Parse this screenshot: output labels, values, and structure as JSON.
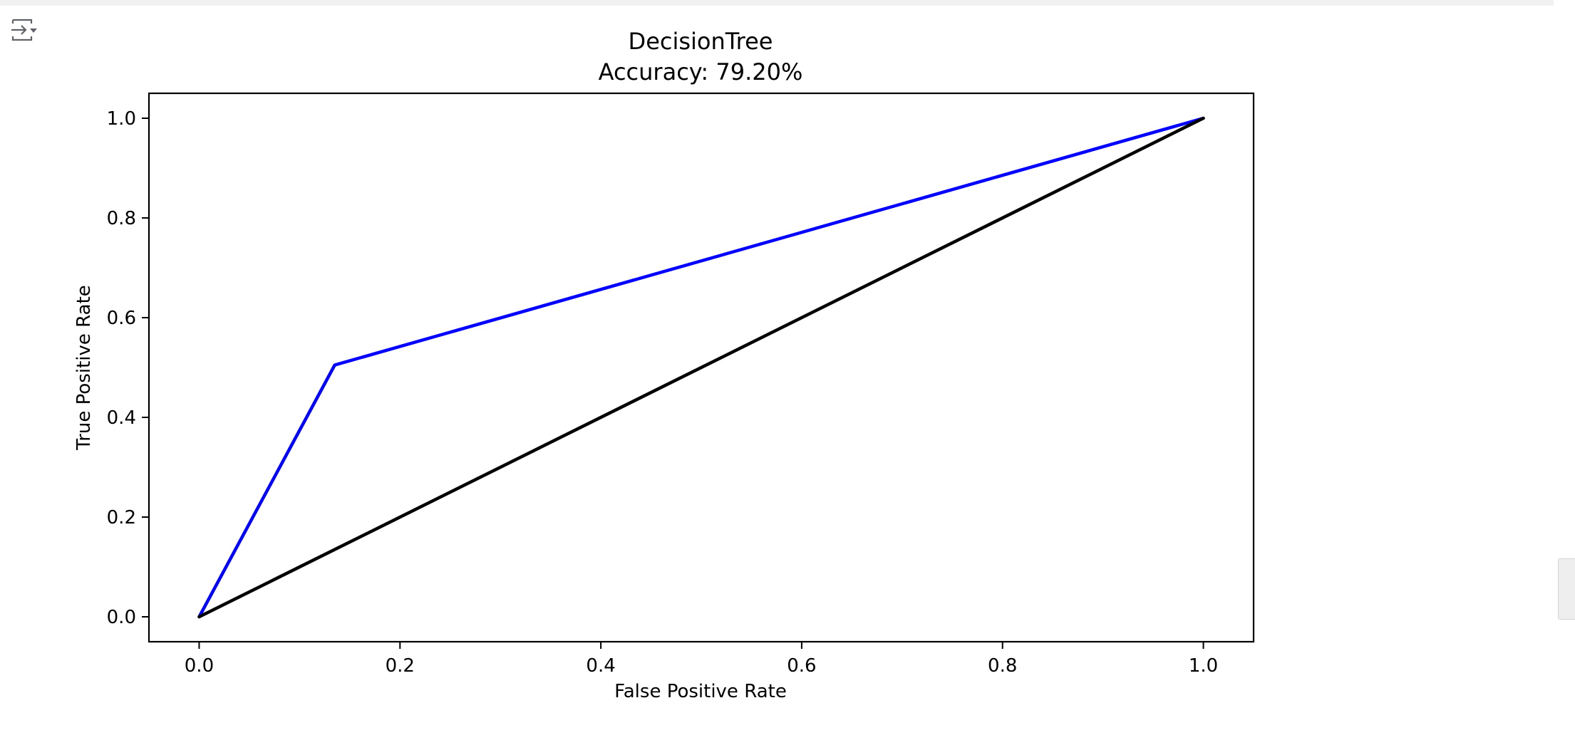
{
  "output_toggle": {
    "icon": "output-toggle-icon"
  },
  "chart_data": {
    "type": "line",
    "title": "DecisionTree",
    "subtitle": "Accuracy: 79.20%",
    "xlabel": "False Positive Rate",
    "ylabel": "True Positive Rate",
    "xlim": [
      -0.05,
      1.05
    ],
    "ylim": [
      -0.05,
      1.05
    ],
    "x_ticks": [
      0.0,
      0.2,
      0.4,
      0.6,
      0.8,
      1.0
    ],
    "y_ticks": [
      0.0,
      0.2,
      0.4,
      0.6,
      0.8,
      1.0
    ],
    "x_tick_labels": [
      "0.0",
      "0.2",
      "0.4",
      "0.6",
      "0.8",
      "1.0"
    ],
    "y_tick_labels": [
      "0.0",
      "0.2",
      "0.4",
      "0.6",
      "0.8",
      "1.0"
    ],
    "grid": false,
    "legend": false,
    "series": [
      {
        "color": "#0000ff",
        "x": [
          0.0,
          0.135,
          1.0
        ],
        "y": [
          0.0,
          0.505,
          1.0
        ]
      },
      {
        "color": "#000000",
        "x": [
          0.0,
          1.0
        ],
        "y": [
          0.0,
          1.0
        ]
      }
    ]
  }
}
